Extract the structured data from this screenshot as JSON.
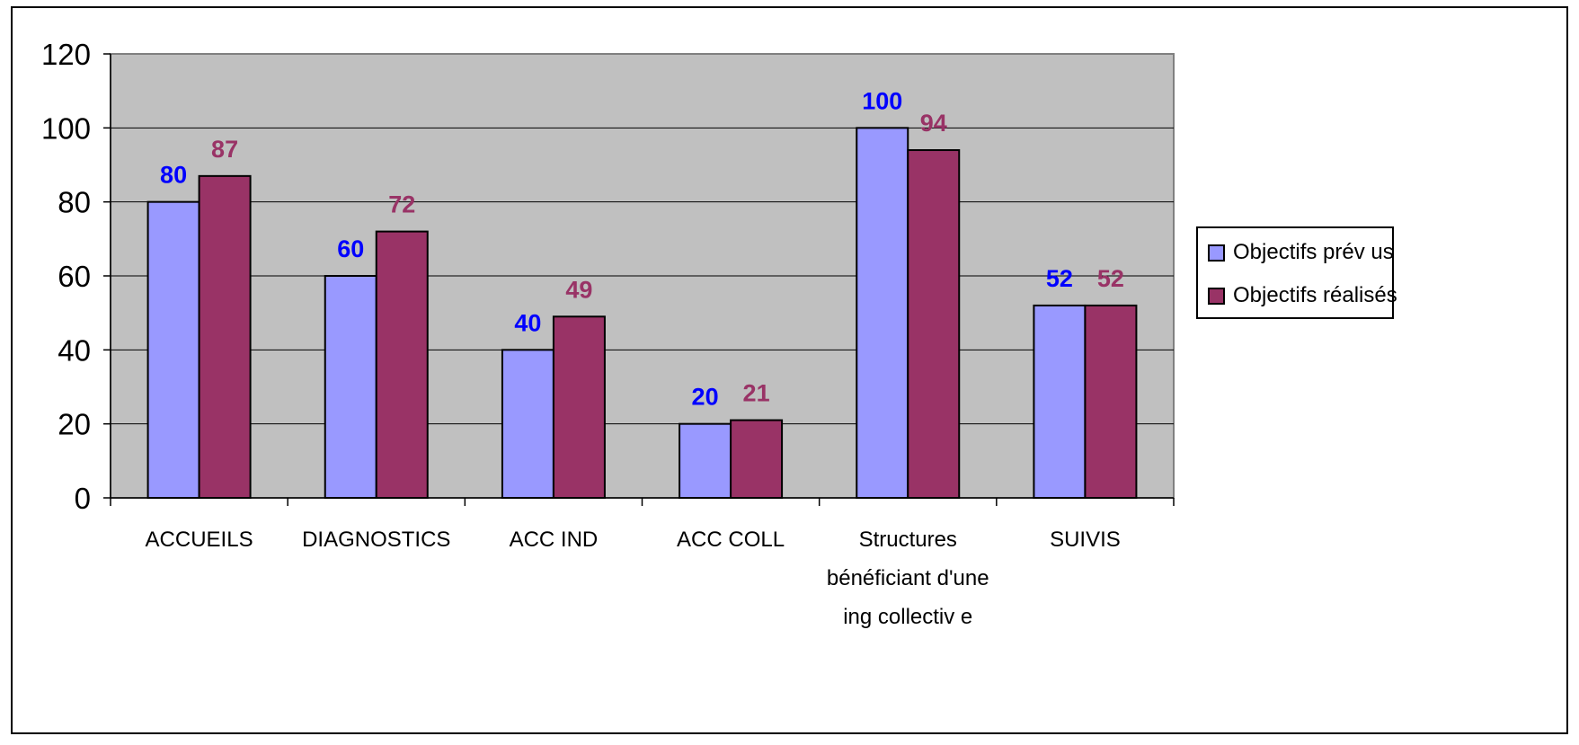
{
  "chart_data": {
    "type": "bar",
    "categories": [
      [
        "ACCUEILS"
      ],
      [
        "DIAGNOSTICS"
      ],
      [
        "ACC IND"
      ],
      [
        "ACC COLL"
      ],
      [
        "Structures",
        "bénéficiant d'une",
        "ing collectiv e"
      ],
      [
        "SUIVIS"
      ]
    ],
    "series": [
      {
        "name": "Objectifs prév us",
        "values": [
          80,
          60,
          40,
          20,
          100,
          52
        ],
        "color": "#9999FF",
        "label_color": "#0000FF"
      },
      {
        "name": "Objectifs réalisés",
        "values": [
          87,
          72,
          49,
          21,
          94,
          52
        ],
        "color": "#993366",
        "label_color": "#993366"
      }
    ],
    "yticks": [
      0,
      20,
      40,
      60,
      80,
      100,
      120
    ],
    "ylim": [
      0,
      120
    ],
    "grid": true,
    "plot_background": "#C0C0C0",
    "legend_position": "right"
  }
}
